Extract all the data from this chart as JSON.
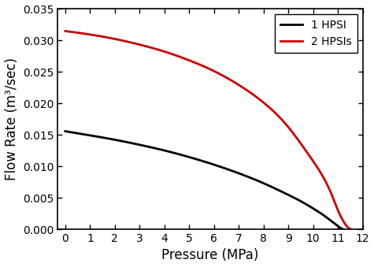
{
  "title": "",
  "xlabel": "Pressure (MPa)",
  "ylabel": "Flow Rate (m³/sec)",
  "xlim": [
    -0.3,
    12
  ],
  "ylim": [
    0,
    0.035
  ],
  "xticks": [
    0,
    1,
    2,
    3,
    4,
    5,
    6,
    7,
    8,
    9,
    10,
    11,
    12
  ],
  "yticks": [
    0.0,
    0.005,
    0.01,
    0.015,
    0.02,
    0.025,
    0.03,
    0.035
  ],
  "curve1_color": "#000000",
  "curve2_color": "#cc0000",
  "curve1_label": "1 HPSI",
  "curve2_label": "2 HPSIs",
  "linewidth": 2.0,
  "background_color": "#ffffff",
  "legend_fontsize": 10,
  "axis_fontsize": 12,
  "tick_fontsize": 10,
  "curve1_points_x": [
    0,
    1,
    2,
    3,
    4,
    5,
    6,
    7,
    8,
    9,
    9.5,
    10.0,
    10.5,
    10.8,
    11.0,
    11.15,
    11.22
  ],
  "curve1_points_y": [
    0.01555,
    0.0149,
    0.0142,
    0.0134,
    0.0125,
    0.01145,
    0.01025,
    0.00888,
    0.0073,
    0.00545,
    0.00445,
    0.0033,
    0.002,
    0.0011,
    0.0005,
    0.0001,
    0.0
  ],
  "curve2_points_x": [
    0,
    1,
    2,
    3,
    4,
    5,
    6,
    7,
    8,
    9,
    9.5,
    10.0,
    10.5,
    10.8,
    11.0,
    11.2,
    11.4,
    11.52
  ],
  "curve2_points_y": [
    0.03145,
    0.0309,
    0.0302,
    0.0293,
    0.0282,
    0.0268,
    0.0251,
    0.0229,
    0.0201,
    0.0162,
    0.0136,
    0.0108,
    0.0076,
    0.005,
    0.003,
    0.0014,
    0.0003,
    0.0
  ]
}
